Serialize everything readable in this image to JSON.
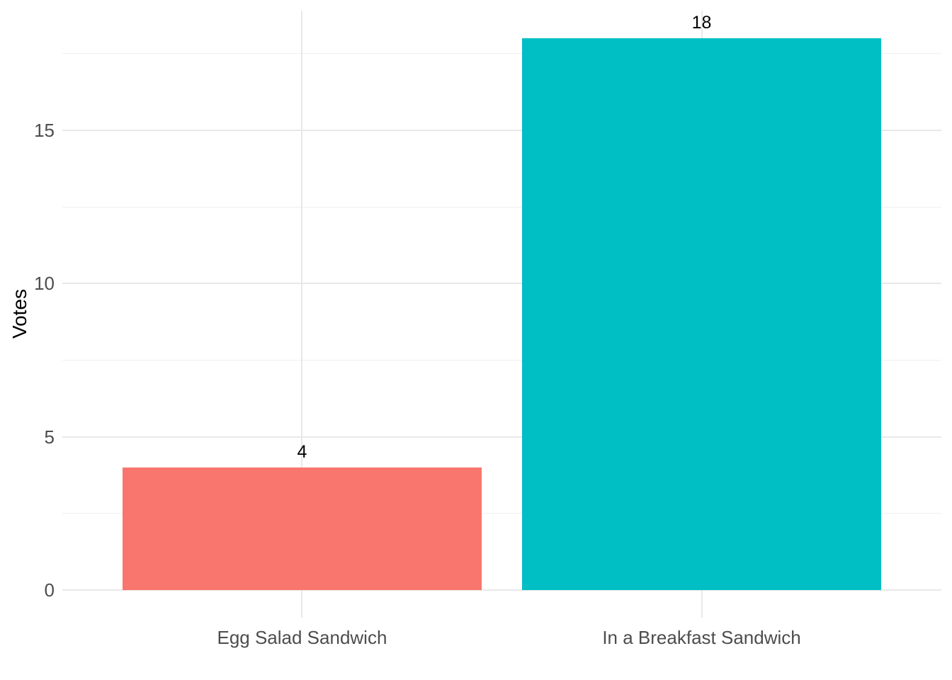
{
  "chart_data": {
    "type": "bar",
    "title": "",
    "categories": [
      "Egg Salad Sandwich",
      "In a Breakfast Sandwich"
    ],
    "values": [
      4,
      18
    ],
    "value_labels": [
      "4",
      "18"
    ],
    "bar_colors": [
      "#F8766D",
      "#00BFC4"
    ],
    "xlabel": "",
    "ylabel": "Votes",
    "ylim": [
      0,
      18
    ],
    "y_major_ticks": [
      0,
      5,
      10,
      15
    ],
    "y_tick_labels": [
      "0",
      "5",
      "10",
      "15"
    ],
    "y_minor_ticks": [
      2.5,
      7.5,
      12.5,
      17.5
    ],
    "grid": "on",
    "legend": "none",
    "background_color": "#FFFFFF",
    "grid_major_color": "#E8E8E8",
    "grid_minor_color": "#EFEFEF",
    "axis_text_color": "#4D4D4D",
    "value_label_color": "#000000"
  }
}
